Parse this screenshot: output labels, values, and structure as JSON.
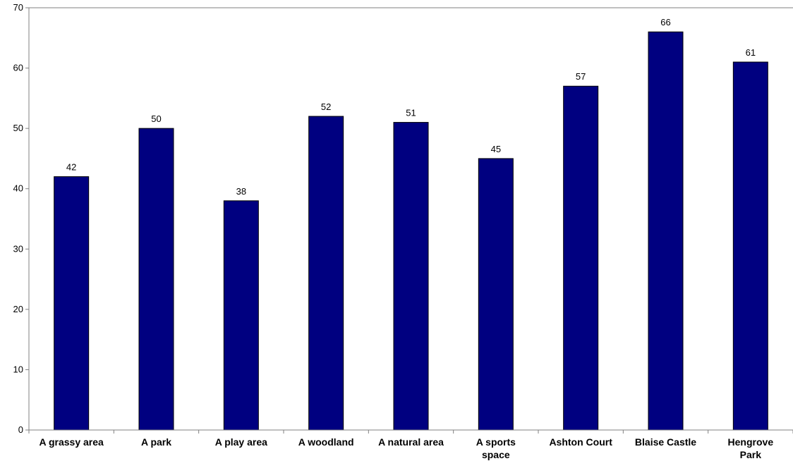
{
  "chart_data": {
    "type": "bar",
    "categories": [
      "A grassy area",
      "A park",
      "A play area",
      "A woodland",
      "A natural area",
      "A sports space",
      "Ashton Court",
      "Blaise Castle",
      "Hengrove Park"
    ],
    "category_lines": [
      [
        "A grassy area"
      ],
      [
        "A park"
      ],
      [
        "A play area"
      ],
      [
        "A woodland"
      ],
      [
        "A natural area"
      ],
      [
        "A sports",
        "space"
      ],
      [
        "Ashton Court"
      ],
      [
        "Blaise Castle"
      ],
      [
        "Hengrove",
        "Park"
      ]
    ],
    "values": [
      42,
      50,
      38,
      52,
      51,
      45,
      57,
      66,
      61
    ],
    "data_labels": [
      "42",
      "50",
      "38",
      "52",
      "51",
      "45",
      "57",
      "66",
      "61"
    ],
    "title": "",
    "xlabel": "",
    "ylabel": "",
    "ylim": [
      0,
      70
    ],
    "yticks": [
      0,
      10,
      20,
      30,
      40,
      50,
      60,
      70
    ],
    "ytick_labels": [
      "0",
      "10",
      "20",
      "30",
      "40",
      "50",
      "60",
      "70"
    ],
    "grid": false,
    "legend": "none",
    "colors": {
      "bar_fill": "#000080",
      "bar_stroke": "#000000",
      "axis": "#808080",
      "text": "#000000"
    }
  }
}
